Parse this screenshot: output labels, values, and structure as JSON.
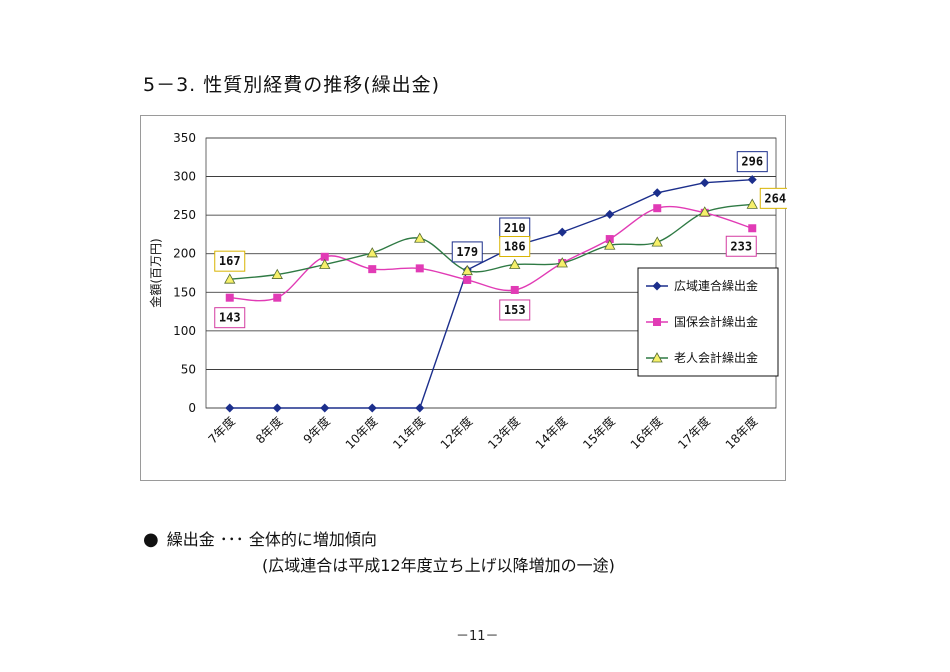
{
  "page": {
    "title": "5－3. 性質別経費の推移(繰出金)",
    "bullet": "繰出金 ･･･ 全体的に増加傾向",
    "sub_note": "(広域連合は平成12年度立ち上げ以降増加の一途)",
    "page_number": "－11－"
  },
  "chart_data": {
    "type": "line",
    "ylabel": "金額(百万円)",
    "ylim": [
      0,
      350
    ],
    "yticks": [
      0,
      50,
      100,
      150,
      200,
      250,
      300,
      350
    ],
    "grid": true,
    "legend_position": "right",
    "categories": [
      "7年度",
      "8年度",
      "9年度",
      "10年度",
      "11年度",
      "12年度",
      "13年度",
      "14年度",
      "15年度",
      "16年度",
      "17年度",
      "18年度"
    ],
    "series": [
      {
        "name": "広域連合繰出金",
        "color": "#1c2f8c",
        "marker": "diamond",
        "values": [
          0,
          0,
          0,
          0,
          0,
          179,
          210,
          228,
          251,
          279,
          292,
          296
        ]
      },
      {
        "name": "国保会計繰出金",
        "color": "#e13bb5",
        "marker": "square",
        "values": [
          143,
          143,
          196,
          180,
          181,
          166,
          153,
          188,
          219,
          259,
          253,
          233
        ]
      },
      {
        "name": "老人会計繰出金",
        "color": "#2f7a44",
        "marker": "triangle",
        "values": [
          167,
          173,
          186,
          201,
          220,
          178,
          186,
          188,
          211,
          215,
          254,
          264
        ]
      }
    ],
    "annotations": [
      {
        "text": "167",
        "series": 2,
        "index": 0,
        "anchor": "above",
        "edge": "#d8b300"
      },
      {
        "text": "143",
        "series": 1,
        "index": 0,
        "anchor": "below",
        "edge": "#d33aa0"
      },
      {
        "text": "179",
        "series": 0,
        "index": 5,
        "anchor": "above",
        "edge": "#1c2f8c"
      },
      {
        "text": "210",
        "series": 0,
        "index": 6,
        "anchor": "above",
        "edge": "#1c2f8c"
      },
      {
        "text": "186",
        "series": 2,
        "index": 6,
        "anchor": "above",
        "edge": "#d8b300"
      },
      {
        "text": "153",
        "series": 1,
        "index": 6,
        "anchor": "below",
        "edge": "#d33aa0"
      },
      {
        "text": "296",
        "series": 0,
        "index": 11,
        "anchor": "above",
        "edge": "#1c2f8c"
      },
      {
        "text": "264",
        "series": 2,
        "index": 11,
        "anchor": "right",
        "edge": "#d8b300"
      },
      {
        "text": "233",
        "series": 1,
        "index": 11,
        "anchor": "belowleft",
        "edge": "#d33aa0"
      }
    ]
  }
}
